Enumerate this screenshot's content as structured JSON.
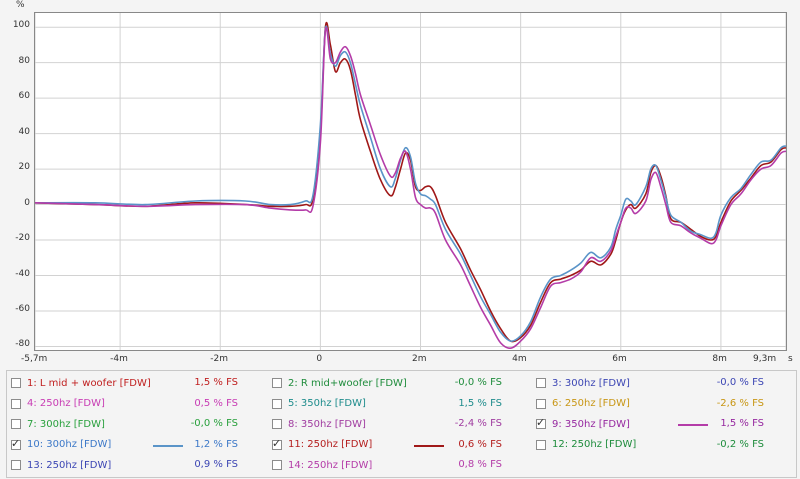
{
  "chart_data": {
    "type": "line",
    "ylabel": "%",
    "xunit": "s",
    "xlim": [
      -5.7,
      9.3
    ],
    "ylim": [
      -82,
      108
    ],
    "x_ticks": [
      {
        "value": -5.7,
        "label": "-5,7m"
      },
      {
        "value": -4,
        "label": "-4m"
      },
      {
        "value": -2,
        "label": "-2m"
      },
      {
        "value": 0,
        "label": "0"
      },
      {
        "value": 2,
        "label": "2m"
      },
      {
        "value": 4,
        "label": "4m"
      },
      {
        "value": 6,
        "label": "6m"
      },
      {
        "value": 8,
        "label": "8m"
      },
      {
        "value": 9.3,
        "label": "9,3m"
      }
    ],
    "y_ticks": [
      100,
      80,
      60,
      40,
      20,
      0,
      -20,
      -40,
      -60,
      -80
    ],
    "grid": true,
    "series": [
      {
        "name": "11: 250hz [FDW]",
        "color": "#a01818",
        "x": [
          -5.7,
          -4.5,
          -3.5,
          -2.5,
          -1.5,
          -1.0,
          -0.6,
          -0.3,
          -0.15,
          0.0,
          0.1,
          0.2,
          0.3,
          0.4,
          0.5,
          0.6,
          0.7,
          0.8,
          1.0,
          1.2,
          1.4,
          1.5,
          1.6,
          1.7,
          1.8,
          1.9,
          2.0,
          2.1,
          2.2,
          2.3,
          2.5,
          2.8,
          3.0,
          3.2,
          3.4,
          3.6,
          3.8,
          4.0,
          4.2,
          4.4,
          4.6,
          4.8,
          5.0,
          5.2,
          5.4,
          5.6,
          5.8,
          5.9,
          6.0,
          6.1,
          6.2,
          6.3,
          6.5,
          6.6,
          6.7,
          6.8,
          6.9,
          7.0,
          7.2,
          7.4,
          7.6,
          7.8,
          7.9,
          8.0,
          8.2,
          8.4,
          8.6,
          8.8,
          9.0,
          9.2,
          9.3
        ],
        "y": [
          1,
          0,
          -1,
          1,
          0,
          -1,
          -1,
          0,
          3,
          40,
          100,
          90,
          75,
          80,
          82,
          76,
          62,
          48,
          30,
          14,
          5,
          10,
          20,
          29,
          25,
          10,
          8,
          10,
          10,
          5,
          -10,
          -25,
          -37,
          -48,
          -60,
          -70,
          -77,
          -75,
          -68,
          -55,
          -44,
          -42,
          -40,
          -37,
          -32,
          -34,
          -28,
          -20,
          -10,
          -3,
          0,
          -2,
          6,
          18,
          22,
          16,
          5,
          -8,
          -10,
          -14,
          -18,
          -20,
          -18,
          -10,
          2,
          8,
          15,
          22,
          24,
          31,
          32
        ]
      },
      {
        "name": "10: 300hz [FDW]",
        "color": "#5a94c8",
        "x": [
          -5.7,
          -4.5,
          -3.5,
          -2.5,
          -1.5,
          -1.0,
          -0.6,
          -0.3,
          -0.15,
          0.0,
          0.1,
          0.2,
          0.3,
          0.4,
          0.5,
          0.6,
          0.7,
          0.8,
          1.0,
          1.2,
          1.4,
          1.5,
          1.6,
          1.7,
          1.8,
          1.9,
          2.0,
          2.1,
          2.2,
          2.3,
          2.5,
          2.8,
          3.0,
          3.2,
          3.4,
          3.6,
          3.8,
          4.0,
          4.2,
          4.4,
          4.6,
          4.8,
          5.0,
          5.2,
          5.4,
          5.6,
          5.8,
          5.9,
          6.0,
          6.1,
          6.2,
          6.3,
          6.5,
          6.6,
          6.7,
          6.8,
          6.9,
          7.0,
          7.2,
          7.4,
          7.6,
          7.8,
          7.9,
          8.0,
          8.2,
          8.4,
          8.6,
          8.8,
          9.0,
          9.2,
          9.3
        ],
        "y": [
          1,
          1,
          0,
          2,
          2,
          0,
          0,
          2,
          5,
          45,
          99,
          85,
          78,
          84,
          86,
          80,
          68,
          56,
          38,
          20,
          10,
          15,
          25,
          32,
          27,
          12,
          6,
          5,
          3,
          0,
          -14,
          -28,
          -40,
          -52,
          -62,
          -72,
          -77,
          -74,
          -66,
          -52,
          -42,
          -40,
          -37,
          -33,
          -27,
          -30,
          -24,
          -14,
          -6,
          3,
          2,
          0,
          10,
          20,
          22,
          14,
          4,
          -6,
          -10,
          -15,
          -17,
          -19,
          -16,
          -6,
          4,
          9,
          17,
          24,
          25,
          32,
          33
        ]
      },
      {
        "name": "9: 350hz [FDW]",
        "color": "#b43ca8",
        "x": [
          -5.7,
          -4.5,
          -3.5,
          -2.5,
          -1.5,
          -1.0,
          -0.6,
          -0.3,
          -0.15,
          0.0,
          0.1,
          0.2,
          0.3,
          0.4,
          0.5,
          0.6,
          0.7,
          0.8,
          1.0,
          1.2,
          1.4,
          1.5,
          1.6,
          1.7,
          1.8,
          1.9,
          2.0,
          2.1,
          2.2,
          2.3,
          2.5,
          2.8,
          3.0,
          3.2,
          3.4,
          3.6,
          3.8,
          4.0,
          4.2,
          4.4,
          4.6,
          4.8,
          5.0,
          5.2,
          5.4,
          5.6,
          5.8,
          5.9,
          6.0,
          6.1,
          6.2,
          6.3,
          6.5,
          6.6,
          6.7,
          6.8,
          6.9,
          7.0,
          7.2,
          7.4,
          7.6,
          7.8,
          7.9,
          8.0,
          8.2,
          8.4,
          8.6,
          8.8,
          9.0,
          9.2,
          9.3
        ],
        "y": [
          1,
          0,
          -1,
          0,
          0,
          -2,
          -3,
          -3,
          -1,
          35,
          98,
          82,
          80,
          86,
          89,
          84,
          74,
          62,
          45,
          28,
          16,
          18,
          26,
          30,
          20,
          4,
          0,
          -2,
          -2,
          -5,
          -20,
          -34,
          -46,
          -58,
          -68,
          -78,
          -81,
          -77,
          -70,
          -58,
          -46,
          -44,
          -42,
          -38,
          -30,
          -32,
          -26,
          -18,
          -10,
          -2,
          -2,
          -5,
          2,
          14,
          18,
          10,
          0,
          -10,
          -12,
          -16,
          -19,
          -22,
          -20,
          -12,
          0,
          6,
          14,
          20,
          22,
          29,
          30
        ]
      }
    ]
  },
  "legend": {
    "items": [
      {
        "label": "1: L mid + woofer [FDW]",
        "value": "1,5 % FS",
        "checked": false,
        "color": "#c02020"
      },
      {
        "label": "2: R mid+woofer [FDW]",
        "value": "-0,0 % FS",
        "checked": false,
        "color": "#1f8c3c"
      },
      {
        "label": "3: 300hz [FDW]",
        "value": "-0,0 % FS",
        "checked": false,
        "color": "#3c46b4"
      },
      {
        "label": "4: 250hz [FDW]",
        "value": "0,5 % FS",
        "checked": false,
        "color": "#c83cb4"
      },
      {
        "label": "5: 350hz [FDW]",
        "value": "1,5 % FS",
        "checked": false,
        "color": "#1e8c8c"
      },
      {
        "label": "6: 250hz [FDW]",
        "value": "-2,6 % FS",
        "checked": false,
        "color": "#c89614"
      },
      {
        "label": "7: 300hz [FDW]",
        "value": "-0,0 % FS",
        "checked": false,
        "color": "#28a03c"
      },
      {
        "label": "8: 350hz [FDW]",
        "value": "-2,4 % FS",
        "checked": false,
        "color": "#a03ca0"
      },
      {
        "label": "9: 350hz [FDW]",
        "value": "1,5 % FS",
        "checked": true,
        "color": "#9628a0",
        "swatch": "#b43ca8"
      },
      {
        "label": "10: 300hz [FDW]",
        "value": "1,2 % FS",
        "checked": true,
        "color": "#3c78c8",
        "swatch": "#5a94c8"
      },
      {
        "label": "11: 250hz [FDW]",
        "value": "0,6 % FS",
        "checked": true,
        "color": "#b41e1e",
        "swatch": "#a01818"
      },
      {
        "label": "12: 250hz [FDW]",
        "value": "-0,2 % FS",
        "checked": false,
        "color": "#1e8c3c"
      },
      {
        "label": "13: 250hz [FDW]",
        "value": "0,9 % FS",
        "checked": false,
        "color": "#3c46b4"
      },
      {
        "label": "14: 250hz [FDW]",
        "value": "0,8 % FS",
        "checked": false,
        "color": "#b43ca8"
      }
    ]
  }
}
